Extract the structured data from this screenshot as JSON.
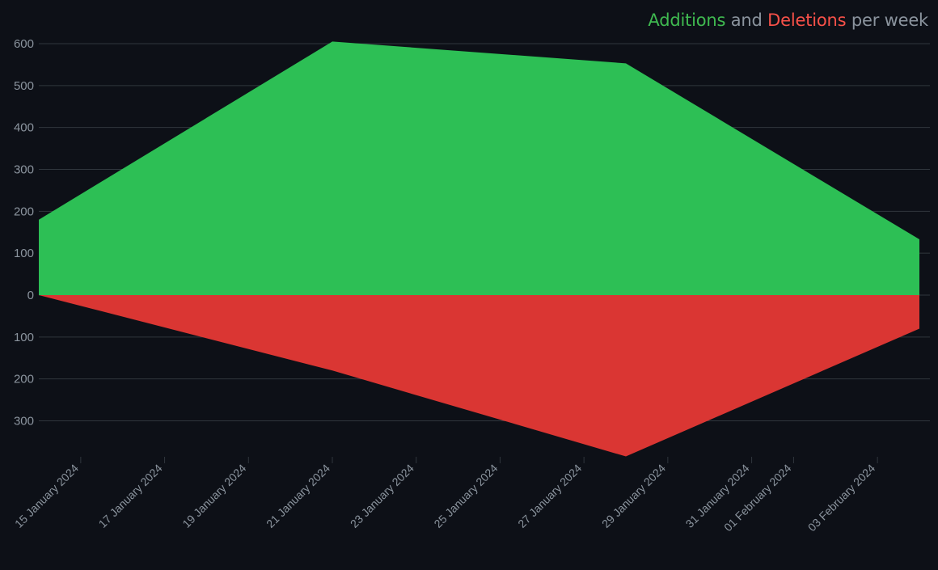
{
  "colors": {
    "background": "#0d1017",
    "grid": "#30363d",
    "tick_text": "#8b949e",
    "additions": "#2dbf55",
    "deletions": "#da3633",
    "title_additions": "#3fb950",
    "title_deletions": "#f85149",
    "title_plain": "#8b949e"
  },
  "title": {
    "additions": "Additions",
    "and": "and",
    "deletions": "Deletions",
    "suffix": "per week"
  },
  "chart_data": {
    "type": "area",
    "title": "Additions and Deletions per week",
    "xlabel": "",
    "ylabel": "",
    "grid": true,
    "legend": "none",
    "x_axis": {
      "type": "date",
      "range": [
        "2024-01-14",
        "2024-02-04"
      ],
      "ticks": [
        {
          "date": "2024-01-15",
          "label": "15 January 2024"
        },
        {
          "date": "2024-01-17",
          "label": "17 January 2024"
        },
        {
          "date": "2024-01-19",
          "label": "19 January 2024"
        },
        {
          "date": "2024-01-21",
          "label": "21 January 2024"
        },
        {
          "date": "2024-01-23",
          "label": "23 January 2024"
        },
        {
          "date": "2024-01-25",
          "label": "25 January 2024"
        },
        {
          "date": "2024-01-27",
          "label": "27 January 2024"
        },
        {
          "date": "2024-01-29",
          "label": "29 January 2024"
        },
        {
          "date": "2024-01-31",
          "label": "31 January 2024"
        },
        {
          "date": "2024-02-01",
          "label": "01 February 2024"
        },
        {
          "date": "2024-02-03",
          "label": "03 February 2024"
        }
      ]
    },
    "y_axis": {
      "range": [
        -390,
        600
      ],
      "ticks": [
        {
          "value": 600,
          "label": "600"
        },
        {
          "value": 500,
          "label": "500"
        },
        {
          "value": 400,
          "label": "400"
        },
        {
          "value": 300,
          "label": "300"
        },
        {
          "value": 200,
          "label": "200"
        },
        {
          "value": 100,
          "label": "100"
        },
        {
          "value": 0,
          "label": "0"
        },
        {
          "value": -100,
          "label": "100"
        },
        {
          "value": -200,
          "label": "200"
        },
        {
          "value": -300,
          "label": "300"
        }
      ]
    },
    "series": [
      {
        "name": "Additions",
        "color": "#2dbf55",
        "points": [
          {
            "x": "2024-01-14",
            "y": 180
          },
          {
            "x": "2024-01-21",
            "y": 605
          },
          {
            "x": "2024-01-28",
            "y": 553
          },
          {
            "x": "2024-02-04",
            "y": 133
          }
        ]
      },
      {
        "name": "Deletions",
        "color": "#da3633",
        "points": [
          {
            "x": "2024-01-14",
            "y": 0
          },
          {
            "x": "2024-01-21",
            "y": -180
          },
          {
            "x": "2024-01-28",
            "y": -385
          },
          {
            "x": "2024-02-04",
            "y": -80
          }
        ]
      }
    ]
  }
}
